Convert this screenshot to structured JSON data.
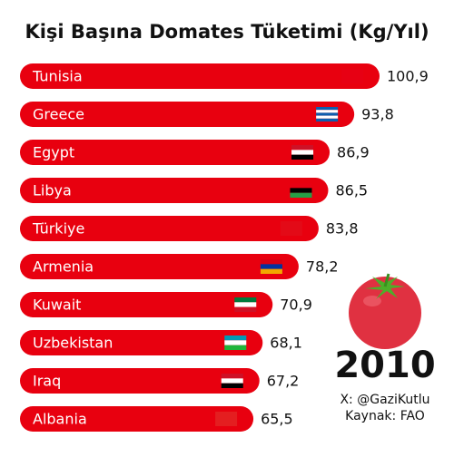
{
  "chart_data": {
    "type": "bar",
    "orientation": "horizontal",
    "title": "Kişi Başına Domates Tüketimi (Kg/Yıl)",
    "categories": [
      "Tunisia",
      "Greece",
      "Egypt",
      "Libya",
      "Türkiye",
      "Armenia",
      "Kuwait",
      "Uzbekistan",
      "Iraq",
      "Albania"
    ],
    "values": [
      100.9,
      93.8,
      86.9,
      86.5,
      83.8,
      78.2,
      70.9,
      68.1,
      67.2,
      65.5
    ],
    "value_labels": [
      "100,9",
      "93,8",
      "86,9",
      "86,5",
      "83,8",
      "78,2",
      "70,9",
      "68,1",
      "67,2",
      "65,5"
    ],
    "color": "#e8000f",
    "annotations": [
      "2010",
      "X: @GaziKutlu",
      "Kaynak: FAO"
    ]
  }
}
